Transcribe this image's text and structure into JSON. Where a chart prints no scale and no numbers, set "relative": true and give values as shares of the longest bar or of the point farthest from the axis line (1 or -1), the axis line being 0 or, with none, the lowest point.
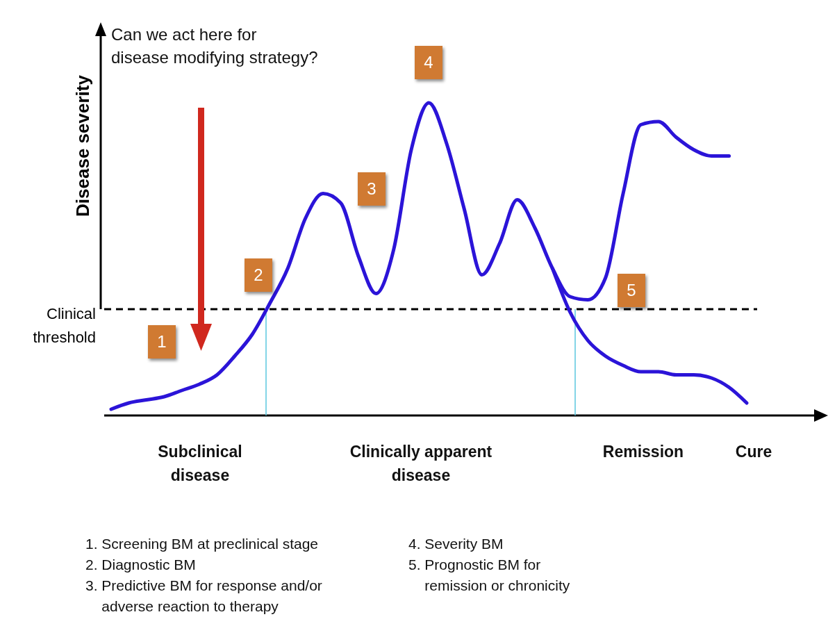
{
  "chart_data": {
    "type": "line",
    "relative": true,
    "ylabel": "Disease severity",
    "categories": [
      null,
      null,
      null,
      null,
      null,
      null,
      null,
      null,
      null,
      null,
      null,
      null,
      null,
      null,
      null,
      null,
      null,
      null,
      null,
      null,
      null,
      null,
      null,
      null,
      null,
      null,
      null,
      null,
      null,
      null,
      null,
      null,
      null,
      null,
      null,
      null,
      null
    ],
    "series": [
      {
        "color": "#2b14d8",
        "values": [
          0.02,
          0.04,
          0.05,
          0.06,
          0.08,
          0.1,
          0.13,
          0.19,
          0.26,
          0.36,
          0.47,
          0.63,
          0.71,
          0.68,
          0.51,
          0.39,
          0.53,
          0.85,
          1.0,
          0.87,
          0.66,
          0.45,
          0.55,
          0.69,
          0.6,
          0.47,
          0.38,
          0.37,
          0.44,
          0.71,
          0.93,
          0.94,
          0.89,
          0.85,
          0.83,
          0.83,
          null
        ]
      },
      {
        "color": "#2b14d8",
        "values": [
          null,
          null,
          null,
          null,
          null,
          null,
          null,
          null,
          null,
          null,
          null,
          null,
          null,
          null,
          null,
          null,
          null,
          null,
          null,
          null,
          null,
          null,
          null,
          null,
          null,
          0.47,
          0.33,
          0.24,
          0.19,
          0.16,
          0.14,
          0.14,
          0.13,
          0.13,
          0.12,
          0.09,
          0.04
        ]
      }
    ],
    "line_style": "solid",
    "ref_lines": [
      {
        "axis": "y",
        "value": 0.34,
        "label": "Clinical\nthreshold",
        "color": "#000000",
        "line_style": "dashed"
      }
    ],
    "annotations": [
      "Can we act here for\ndisease modifying strategy?",
      "1",
      "2",
      "3",
      "4",
      "5",
      "Subclinical\ndisease",
      "Clinically apparent\ndisease",
      "Remission",
      "Cure",
      "1. Screening BM at preclinical stage",
      "2. Diagnostic BM",
      "3. Predictive BM for response and/or\n    adverse reaction to therapy",
      "4. Severity BM",
      "5. Prognostic BM for\n    remission or chronicity"
    ]
  }
}
